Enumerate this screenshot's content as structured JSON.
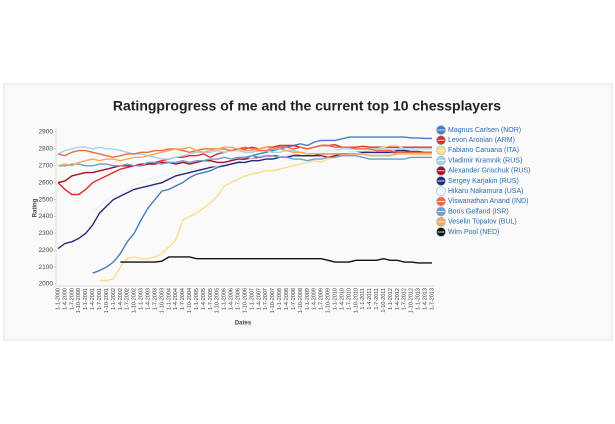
{
  "chart_data": {
    "type": "line",
    "title": "Ratingprogress of me and the current top 10 chessplayers",
    "x_label": "Dates",
    "y_label": "Rating",
    "ylim": [
      2000,
      2900
    ],
    "yticks": [
      2000,
      2100,
      2200,
      2300,
      2400,
      2500,
      2600,
      2700,
      2800,
      2900
    ],
    "grid": false,
    "legend": "right",
    "categories": [
      "1-1-2000",
      "1-4-2000",
      "1-7-2000",
      "1-10-2000",
      "1-1-2001",
      "1-4-2001",
      "1-7-2001",
      "1-10-2001",
      "1-1-2002",
      "1-4-2002",
      "1-7-2002",
      "1-10-2002",
      "1-1-2003",
      "1-4-2003",
      "1-7-2003",
      "1-10-2003",
      "1-1-2004",
      "1-4-2004",
      "1-7-2004",
      "1-10-2004",
      "1-1-2005",
      "1-4-2005",
      "1-7-2005",
      "1-10-2005",
      "1-1-2006",
      "1-4-2006",
      "1-7-2006",
      "1-10-2006",
      "1-1-2007",
      "1-4-2007",
      "1-7-2007",
      "1-10-2007",
      "1-1-2008",
      "1-4-2008",
      "1-7-2008",
      "1-10-2008",
      "1-1-2009",
      "1-4-2009",
      "1-7-2009",
      "1-10-2009",
      "1-1-2010",
      "1-4-2010",
      "1-7-2010",
      "1-10-2010",
      "1-1-2011",
      "1-4-2011",
      "1-7-2011",
      "1-10-2011",
      "1-1-2012",
      "1-4-2012",
      "1-7-2012",
      "1-10-2012",
      "1-1-2013",
      "1-4-2013",
      "1-7-2013"
    ],
    "series": [
      {
        "name": "Magnus Carlsen (NOR)",
        "color": "#4a7cc0",
        "values": [
          null,
          null,
          null,
          null,
          null,
          2064,
          2080,
          2100,
          2130,
          2180,
          2250,
          2300,
          2380,
          2450,
          2500,
          2550,
          2560,
          2580,
          2600,
          2630,
          2650,
          2660,
          2670,
          2690,
          2700,
          2710,
          2720,
          2740,
          2760,
          2770,
          2780,
          2790,
          2800,
          2810,
          2820,
          2830,
          2820,
          2840,
          2850,
          2850,
          2850,
          2860,
          2870,
          2870,
          2870,
          2870,
          2870,
          2870,
          2870,
          2870,
          2870,
          2865,
          2865,
          2862,
          2862
        ]
      },
      {
        "name": "Levon Aronian (ARM)",
        "color": "#d7302c",
        "values": [
          2600,
          2560,
          2530,
          2530,
          2560,
          2600,
          2620,
          2640,
          2660,
          2680,
          2690,
          2700,
          2700,
          2710,
          2720,
          2730,
          2740,
          2750,
          2750,
          2760,
          2760,
          2770,
          2750,
          2770,
          2780,
          2790,
          2800,
          2800,
          2810,
          2800,
          2810,
          2810,
          2820,
          2820,
          2820,
          2810,
          2800,
          2810,
          2820,
          2820,
          2825,
          2810,
          2810,
          2810,
          2815,
          2810,
          2810,
          2810,
          2810,
          2810,
          2810,
          2810,
          2810,
          2810,
          2810
        ]
      },
      {
        "name": "Fabiano Caruana (ITA)",
        "color": "#fddc8c",
        "values": [
          null,
          null,
          null,
          null,
          null,
          null,
          2020,
          2020,
          2030,
          2100,
          2150,
          2160,
          2150,
          2150,
          2160,
          2180,
          2220,
          2260,
          2380,
          2400,
          2420,
          2450,
          2480,
          2520,
          2580,
          2600,
          2620,
          2640,
          2650,
          2660,
          2670,
          2670,
          2680,
          2690,
          2700,
          2710,
          2720,
          2730,
          2720,
          2740,
          2750,
          2760,
          2770,
          2780,
          2780,
          2790,
          2800,
          2810,
          2820,
          2820,
          2800,
          2780,
          2780,
          2780,
          2780
        ]
      },
      {
        "name": "Vladimir Kramnik (RUS)",
        "color": "#a9d3ea",
        "values": [
          2770,
          2790,
          2800,
          2810,
          2810,
          2800,
          2810,
          2800,
          2800,
          2790,
          2780,
          2770,
          2770,
          2760,
          2750,
          2740,
          2740,
          2750,
          2760,
          2770,
          2780,
          2780,
          2780,
          2790,
          2780,
          2790,
          2790,
          2780,
          2780,
          2790,
          2790,
          2780,
          2780,
          2790,
          2790,
          2780,
          2780,
          2770,
          2780,
          2790,
          2790,
          2800,
          2800,
          2800,
          2800,
          2800,
          2800,
          2800,
          2800,
          2800,
          2800,
          2800,
          2800,
          2800,
          2800
        ]
      },
      {
        "name": "Alexander Grischuk (RUS)",
        "color": "#a50f2a",
        "values": [
          2600,
          2610,
          2640,
          2650,
          2660,
          2660,
          2670,
          2680,
          2690,
          2700,
          2700,
          2700,
          2710,
          2710,
          2710,
          2720,
          2720,
          2710,
          2720,
          2710,
          2720,
          2730,
          2730,
          2720,
          2720,
          2730,
          2740,
          2740,
          2740,
          2750,
          2750,
          2760,
          2760,
          2760,
          2770,
          2760,
          2760,
          2760,
          2760,
          2750,
          2760,
          2770,
          2770,
          2770,
          2770,
          2770,
          2770,
          2770,
          2770,
          2780,
          2780,
          2780,
          2780,
          2780,
          2780
        ]
      },
      {
        "name": "Sergey Karjakin (RUS)",
        "color": "#28287e",
        "values": [
          2210,
          2240,
          2250,
          2270,
          2300,
          2350,
          2420,
          2460,
          2500,
          2520,
          2540,
          2560,
          2570,
          2580,
          2590,
          2600,
          2620,
          2640,
          2650,
          2660,
          2670,
          2680,
          2690,
          2700,
          2700,
          2710,
          2720,
          2720,
          2730,
          2730,
          2740,
          2740,
          2750,
          2750,
          2760,
          2760,
          2760,
          2760,
          2770,
          2770,
          2770,
          2770,
          2780,
          2780,
          2780,
          2780,
          2780,
          2780,
          2780,
          2790,
          2790,
          2785,
          2785,
          2780,
          2780
        ]
      },
      {
        "name": "Hikaru Nakamura (USA)",
        "color": "#eef4fb",
        "values": [
          null,
          null,
          null,
          null,
          null,
          2430,
          2460,
          2500,
          2520,
          2540,
          2560,
          2580,
          2600,
          2620,
          2630,
          2640,
          2650,
          2660,
          2670,
          2680,
          2680,
          2690,
          2700,
          2700,
          2710,
          2720,
          2730,
          2730,
          2740,
          2740,
          2750,
          2750,
          2760,
          2760,
          2770,
          2770,
          2780,
          2780,
          2780,
          2790,
          2790,
          2780,
          2780,
          2780,
          2770,
          2770,
          2770,
          2770,
          2770,
          2770,
          2770,
          2770,
          2770,
          2770,
          2770
        ]
      },
      {
        "name": "Viswanathan Anand (IND)",
        "color": "#ef6a3e",
        "values": [
          2770,
          2760,
          2780,
          2790,
          2790,
          2780,
          2770,
          2760,
          2750,
          2760,
          2770,
          2770,
          2780,
          2780,
          2790,
          2790,
          2800,
          2800,
          2790,
          2780,
          2790,
          2800,
          2800,
          2800,
          2800,
          2790,
          2800,
          2810,
          2800,
          2790,
          2790,
          2800,
          2810,
          2810,
          2800,
          2810,
          2800,
          2810,
          2820,
          2820,
          2810,
          2810,
          2810,
          2800,
          2800,
          2800,
          2790,
          2790,
          2790,
          2780,
          2780,
          2780,
          2780,
          2780,
          2780
        ]
      },
      {
        "name": "Boris Gelfand (ISR)",
        "color": "#6e9fcb",
        "values": [
          2700,
          2700,
          2710,
          2710,
          2700,
          2700,
          2710,
          2710,
          2700,
          2700,
          2710,
          2700,
          2700,
          2720,
          2720,
          2710,
          2720,
          2720,
          2730,
          2720,
          2730,
          2730,
          2740,
          2740,
          2750,
          2740,
          2750,
          2750,
          2760,
          2750,
          2760,
          2760,
          2750,
          2750,
          2740,
          2740,
          2730,
          2740,
          2740,
          2750,
          2750,
          2760,
          2760,
          2760,
          2750,
          2740,
          2740,
          2740,
          2740,
          2740,
          2740,
          2750,
          2750,
          2750,
          2750
        ]
      },
      {
        "name": "Veselin Topalov (BUL)",
        "color": "#f9a85a",
        "values": [
          2700,
          2710,
          2700,
          2720,
          2730,
          2740,
          2730,
          2740,
          2740,
          2730,
          2740,
          2750,
          2750,
          2760,
          2770,
          2780,
          2790,
          2800,
          2800,
          2810,
          2790,
          2780,
          2790,
          2800,
          2810,
          2810,
          2800,
          2790,
          2790,
          2800,
          2810,
          2800,
          2800,
          2790,
          2780,
          2780,
          2770,
          2770,
          2770,
          2770,
          2770,
          2770,
          2770,
          2770,
          2770,
          2760,
          2760,
          2760,
          2760,
          2770,
          2770,
          2770,
          2770,
          2770,
          2770
        ]
      },
      {
        "name": "Wim Pool (NED)",
        "color": "#111111",
        "values": [
          null,
          null,
          null,
          null,
          null,
          null,
          null,
          null,
          null,
          2130,
          2130,
          2130,
          2130,
          2130,
          2130,
          2135,
          2160,
          2160,
          2160,
          2160,
          2150,
          2150,
          2150,
          2150,
          2150,
          2150,
          2150,
          2150,
          2150,
          2150,
          2150,
          2150,
          2150,
          2150,
          2150,
          2150,
          2150,
          2150,
          2150,
          2140,
          2130,
          2130,
          2130,
          2140,
          2140,
          2140,
          2140,
          2150,
          2140,
          2140,
          2130,
          2130,
          2125,
          2125,
          2125
        ]
      }
    ]
  }
}
